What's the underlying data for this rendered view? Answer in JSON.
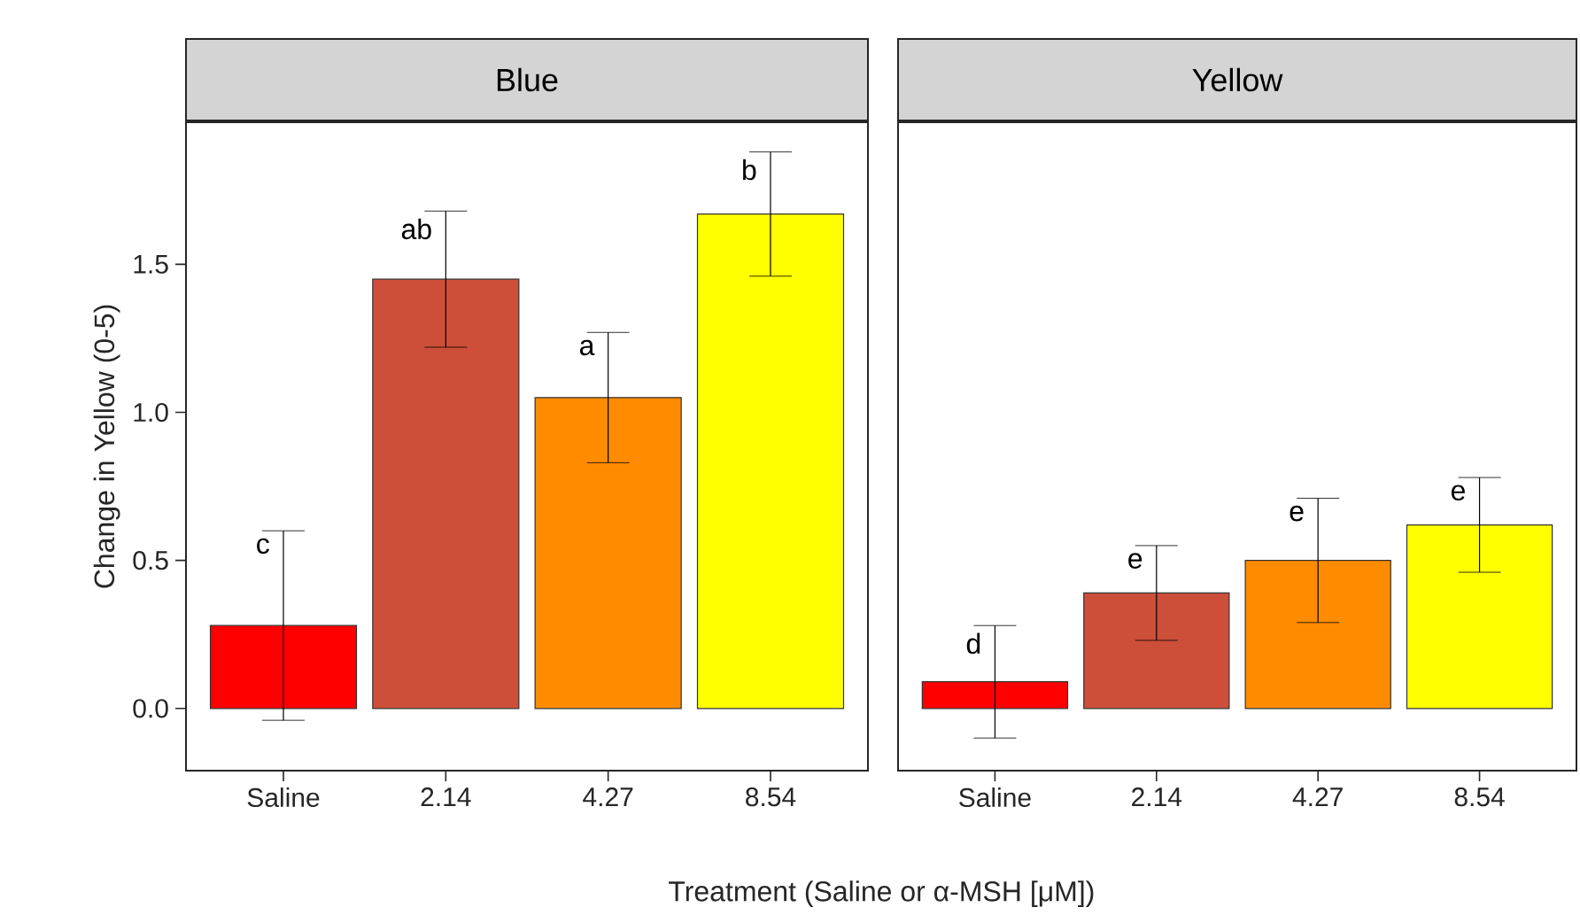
{
  "chart_data": [
    {
      "type": "bar",
      "title": "Blue",
      "xlabel": "Treatment (Saline or α-MSH [μM])",
      "ylabel": "Change in Yellow (0-5)",
      "categories": [
        "Saline",
        "2.14",
        "4.27",
        "8.54"
      ],
      "values": [
        0.28,
        1.45,
        1.05,
        1.67
      ],
      "errors": [
        0.32,
        0.23,
        0.22,
        0.21
      ],
      "colors": [
        "#ff0000",
        "#cd4f39",
        "#ff8c00",
        "#ffff00"
      ],
      "ylim": [
        -0.21,
        1.98
      ],
      "yticks": [
        {
          "value": 0,
          "label": "0.0"
        },
        {
          "value": 0.5,
          "label": "0.5"
        },
        {
          "value": 1,
          "label": "1.0"
        },
        {
          "value": 1.5,
          "label": "1.5"
        }
      ],
      "annotations": [
        {
          "text": "c",
          "x": "Saline",
          "y": 0.28
        },
        {
          "text": "ab",
          "x": "2.14",
          "y": 1.45
        },
        {
          "text": "a",
          "x": "4.27",
          "y": 1.05
        },
        {
          "text": "b",
          "x": "8.54",
          "y": 1.67
        }
      ]
    },
    {
      "type": "bar",
      "title": "Yellow",
      "categories": [
        "Saline",
        "2.14",
        "4.27",
        "8.54"
      ],
      "values": [
        0.09,
        0.39,
        0.5,
        0.62
      ],
      "errors": [
        0.19,
        0.16,
        0.21,
        0.16
      ],
      "colors": [
        "#ff0000",
        "#cd4f39",
        "#ff8c00",
        "#ffff00"
      ],
      "ylim": [
        -0.21,
        1.98
      ],
      "tick_labels": "x",
      "annotations": [
        {
          "text": "d",
          "x": "Saline",
          "y": 0.09
        },
        {
          "text": "e",
          "x": "2.14",
          "y": 0.39
        },
        {
          "text": "e",
          "x": "4.27",
          "y": 0.5
        },
        {
          "text": "e",
          "x": "8.54",
          "y": 0.62
        }
      ]
    }
  ]
}
